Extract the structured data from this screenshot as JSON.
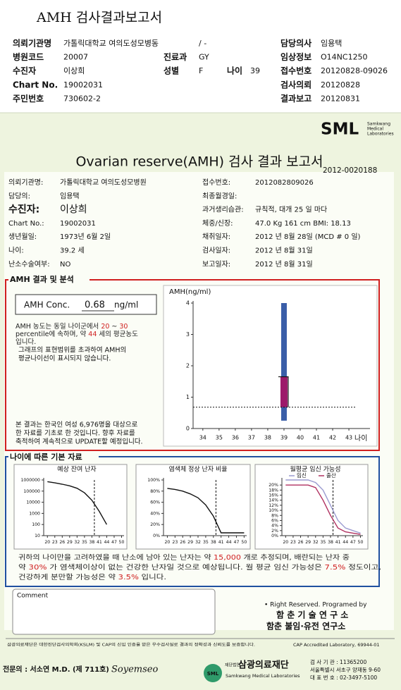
{
  "header": {
    "title": "AMH 검사결과보고서",
    "rows": [
      [
        {
          "label": "의뢰기관명",
          "value": "가톨릭대학교 여의도성모병동"
        },
        {
          "value": "/ -"
        },
        {
          "label": "담당의사",
          "value": "임용택"
        }
      ],
      [
        {
          "label": "병원코드",
          "value": "20007"
        },
        {
          "label": "진료과",
          "value": "GY"
        },
        {
          "label": "임상정보",
          "value": "O14NC1250"
        }
      ],
      [
        {
          "label": "수진자",
          "value": "이상희"
        },
        {
          "label": "성별",
          "value": "F"
        },
        {
          "label": "나이",
          "value": "39"
        },
        {
          "label": "접수번호",
          "value": "20120828-09026"
        }
      ],
      [
        {
          "label": "Chart No.",
          "value": "19002031"
        },
        {
          "label": "검사의뢰",
          "value": "20120828"
        }
      ],
      [
        {
          "label": "주민번호",
          "value": "730602-2"
        },
        {
          "label": "결과보고",
          "value": "20120831"
        }
      ]
    ]
  },
  "report": {
    "logo": "SML",
    "logo_sub": [
      "Samkwang",
      "Medical",
      "Laboratories"
    ],
    "title": "Ovarian reserve(AMH) 검사 결과 보고서",
    "number": "2012-0020188",
    "left": [
      {
        "label": "의뢰기관명:",
        "value": "가톨릭대학교 여의도성모병원"
      },
      {
        "label": "담당의:",
        "value": "임용택"
      },
      {
        "label": "수진자:",
        "value": "이상희"
      },
      {
        "label": "Chart No.:",
        "value": "19002031"
      },
      {
        "label": "생년월일:",
        "value": "1973년 6월 2일"
      },
      {
        "label": "나이:",
        "value": "39.2 세"
      },
      {
        "label": "난소수술여부:",
        "value": "NO"
      }
    ],
    "right": [
      {
        "label": "접수번호:",
        "value": "2012082809026"
      },
      {
        "label": "최종월경일:"
      },
      {
        "label": "과거생리습관:",
        "value": "규칙적, 대개  25 일 마다"
      },
      {
        "label": "체중/신장:",
        "value": "47.0 Kg    161 cm     BMI: 18.13"
      },
      {
        "label": "채취일자:",
        "value": "2012 년  8월 28일   (MCD #  0 일)"
      },
      {
        "label": "검사일자:",
        "value": "2012 년  8월 31일"
      },
      {
        "label": "보고일자:",
        "value": "2012 년  8월 31일"
      }
    ]
  },
  "analysis": {
    "title": "AMH 결과 및 분석",
    "conc_label": "AMH Conc.",
    "conc_value": "0.68",
    "conc_unit": "ng/ml",
    "lines": [
      [
        "AMH 농도는 동일 나이군에서",
        "20",
        "~",
        "30"
      ],
      [
        "percentile에 속하며, 약",
        "44",
        "세의 평균농도"
      ],
      [
        "입니다."
      ]
    ],
    "note_lines": [
      "그래프의 표현범위를 초과하여 AMH의",
      "평균나이선이 표시되지 않습니다."
    ],
    "source_lines": [
      "본 결과는 한국인 여성 6,976명을 대상으로",
      "한 자료를 기초로 한 것입니다. 향후 자료를",
      "축적하여 계속적으로 UPDATE할 예정입니다."
    ]
  },
  "basics": {
    "title": "나이에 따른 기본 자료",
    "summary": [
      [
        "귀하의 나이만을 고려하였을 때 난소에 남아 있는 난자는 약",
        "15,000",
        "개로 추정되며, 배란되는 난자 중"
      ],
      [
        "약",
        "30%",
        "가 염색체이상이 없는 건강한 난자일 것으로 예상됩니다. 월 평균 임신 가능성은",
        "7.5%",
        "정도이고,"
      ],
      [
        "건강하게 분만할 가능성은 약",
        "3.5%",
        "입니다."
      ]
    ]
  },
  "chart_data": [
    {
      "type": "range",
      "y_label": "AMH(ng/ml)",
      "x_label": "나이",
      "xlim": [
        33.4,
        44.3
      ],
      "xticks": [
        34,
        35,
        36,
        37,
        38,
        39,
        40,
        41,
        42,
        43
      ],
      "ylim": [
        0,
        4
      ],
      "yticks": [
        0,
        1,
        2,
        3,
        4
      ],
      "x": 39,
      "low": 0.25,
      "high": 4,
      "range_color": "#3a5ea8",
      "box_low": 0.68,
      "box_high": 1.65,
      "box_color": "#9c1a6a",
      "reference": 0.68
    },
    {
      "type": "line",
      "title": "예상 잔여 난자",
      "log_y": true,
      "age_line": 39,
      "x": [
        20,
        23,
        26,
        29,
        32,
        35,
        38,
        41,
        44,
        47,
        50
      ],
      "xlim": [
        18.5,
        51
      ],
      "xticks": [
        20,
        23,
        26,
        29,
        32,
        35,
        38,
        41,
        44,
        47,
        50
      ],
      "ylim": [
        10,
        1000000
      ],
      "yticks": [
        10,
        100,
        1000,
        10000,
        100000,
        1000000
      ],
      "series": [
        {
          "color": "#111111",
          "values": [
            700000,
            550000,
            420000,
            300000,
            180000,
            70000,
            15000,
            1500,
            100,
            null,
            null
          ]
        }
      ]
    },
    {
      "type": "line",
      "title": "염색체 정상 난자 비율",
      "age_line": 39,
      "x": [
        20,
        23,
        26,
        29,
        32,
        35,
        38,
        41,
        44,
        47,
        50
      ],
      "xlim": [
        18.5,
        51
      ],
      "xticks": [
        20,
        23,
        26,
        29,
        32,
        35,
        38,
        41,
        44,
        47,
        50
      ],
      "ylim": [
        0,
        100
      ],
      "yticks": [
        {
          "value": 0,
          "label": "0%"
        },
        {
          "value": 20,
          "label": "20%"
        },
        {
          "value": 40,
          "label": "40%"
        },
        {
          "value": 60,
          "label": "60%"
        },
        {
          "value": 80,
          "label": "80%"
        },
        {
          "value": 100,
          "label": "100%"
        }
      ],
      "series": [
        {
          "color": "#111111",
          "values": [
            85,
            83,
            80,
            75,
            68,
            55,
            35,
            5,
            5,
            5,
            5
          ]
        }
      ]
    },
    {
      "type": "line",
      "title": "월평균 임신 가능성",
      "age_line": 39,
      "x": [
        20,
        23,
        26,
        29,
        32,
        35,
        38,
        41,
        44,
        47,
        50
      ],
      "xlim": [
        18.5,
        51
      ],
      "xticks": [
        20,
        23,
        26,
        29,
        32,
        35,
        38,
        41,
        44,
        47,
        50
      ],
      "ylim": [
        0,
        22
      ],
      "yticks": [
        {
          "value": 0,
          "label": "0%"
        },
        {
          "value": 2,
          "label": "2%"
        },
        {
          "value": 4,
          "label": "4%"
        },
        {
          "value": 6,
          "label": "6%"
        },
        {
          "value": 8,
          "label": "8%"
        },
        {
          "value": 10,
          "label": "10%"
        },
        {
          "value": 12,
          "label": "12%"
        },
        {
          "value": 14,
          "label": "14%"
        },
        {
          "value": 16,
          "label": "16%"
        },
        {
          "value": 18,
          "label": "18%"
        },
        {
          "value": 20,
          "label": "20%"
        }
      ],
      "series": [
        {
          "name": "임신",
          "color": "#9a9ad0",
          "values": [
            22,
            22,
            22,
            22,
            21,
            18,
            12,
            6,
            3,
            2,
            1
          ]
        },
        {
          "name": "출산",
          "color": "#b03060",
          "values": [
            20,
            20,
            20,
            20,
            19,
            14,
            8,
            3,
            1.5,
            1,
            0.5
          ]
        }
      ]
    }
  ],
  "footer": {
    "comment": "Comment",
    "rights": "• Right Reserved. Programed by",
    "lab1": "함 춘 기 술 연 구 소",
    "lab2": "함춘 불임·유전 연구소",
    "notice": "삼광의료재단은 대한진단검사의학회(KSLM) 및 CAP의 신입 인증을 받은 우수검사실로 결과의 정확성과 신뢰도를 보증합니다.",
    "cap": "CAP Accredited Laboratory,  69944-01",
    "doctor": "전문의 : 서소연 M.D. (제 711호)",
    "signature": "Soyemseo",
    "org_logo": "SML",
    "org_prefix": "재단법인",
    "org_name": "삼광의료재단",
    "org_en": "Samkwang Medical Laboratories",
    "contact": [
      "검 사 기 관 : 11365200",
      "서울특별시 서초구 양재동 9-60",
      "대 표 번 호 : 02-3497-5100"
    ]
  }
}
